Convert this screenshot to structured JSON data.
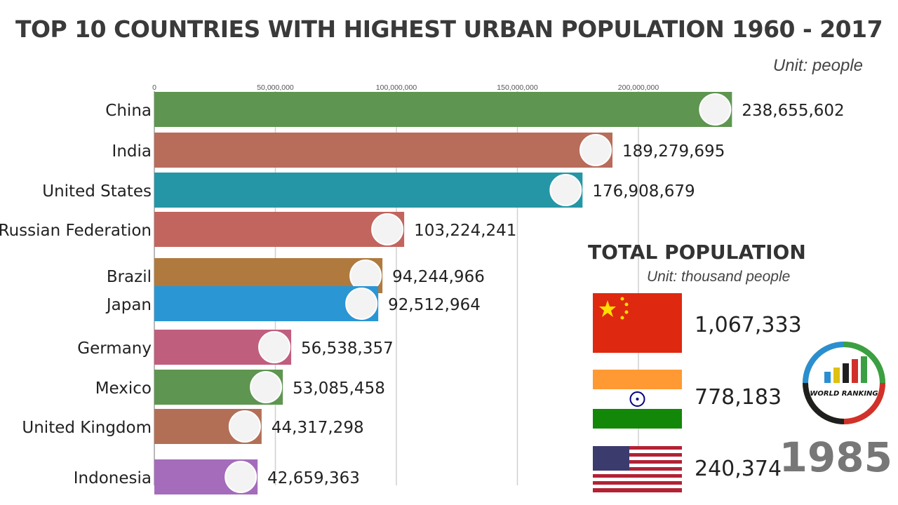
{
  "chart_data": {
    "type": "bar",
    "orientation": "horizontal",
    "title": "TOP 10 COUNTRIES WITH HIGHEST URBAN POPULATION 1960 - 2017",
    "unit": "Unit: people",
    "xlim": [
      0,
      250000000
    ],
    "ticks": [
      0,
      50000000,
      100000000,
      150000000,
      200000000
    ],
    "tick_labels": [
      "0",
      "50,000,000",
      "100,000,000",
      "150,000,000",
      "200,000,000"
    ],
    "categories": [
      "China",
      "India",
      "United States",
      "Russian Federation",
      "Brazil",
      "Japan",
      "Germany",
      "Mexico",
      "United Kingdom",
      "Indonesia"
    ],
    "values": [
      238655602,
      189279695,
      176908679,
      103224241,
      94244966,
      92512964,
      56538357,
      53085458,
      44317298,
      42659363
    ],
    "value_labels": [
      "238,655,602",
      "189,279,695",
      "176,908,679",
      "103,224,241",
      "94,244,966",
      "92,512,964",
      "56,538,357",
      "53,085,458",
      "44,317,298",
      "42,659,363"
    ],
    "colors": [
      "#5e9550",
      "#b86c5a",
      "#2596a6",
      "#c2655e",
      "#b07a3e",
      "#2a96d4",
      "#c05e7e",
      "#5e9550",
      "#b36f56",
      "#a46cba"
    ]
  },
  "total_population": {
    "title": "TOTAL POPULATION",
    "unit": "Unit: thousand people",
    "items": [
      {
        "country": "China",
        "value": "1,067,333"
      },
      {
        "country": "India",
        "value": "778,183"
      },
      {
        "country": "United States",
        "value": "240,374"
      }
    ]
  },
  "year": "1985",
  "logo_text": "WORLD RANKING"
}
